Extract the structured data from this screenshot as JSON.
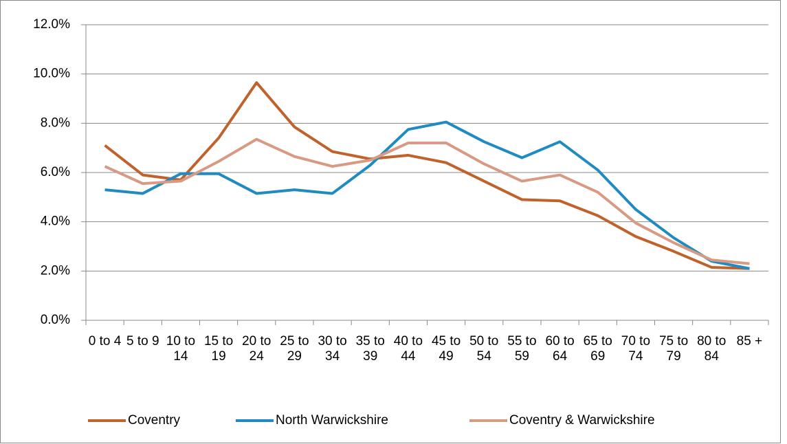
{
  "chart_data": {
    "type": "line",
    "categories": [
      "0 to 4",
      "5 to 9",
      "10 to 14",
      "15 to 19",
      "20 to 24",
      "25 to 29",
      "30 to 34",
      "35 to 39",
      "40 to 44",
      "45 to 49",
      "50 to 54",
      "55 to 59",
      "60 to 64",
      "65 to 69",
      "70 to 74",
      "75 to 79",
      "80 to 84",
      "85 +"
    ],
    "series": [
      {
        "name": "Coventry",
        "color": "#c0622b",
        "values": [
          7.1,
          5.9,
          5.7,
          7.4,
          9.65,
          7.85,
          6.85,
          6.55,
          6.7,
          6.4,
          5.65,
          4.9,
          4.85,
          4.25,
          3.4,
          2.8,
          2.15,
          2.1
        ]
      },
      {
        "name": "North Warwickshire",
        "color": "#1f8bc0",
        "values": [
          5.3,
          5.15,
          5.95,
          5.95,
          5.15,
          5.3,
          5.15,
          6.3,
          7.75,
          8.05,
          7.25,
          6.6,
          7.25,
          6.1,
          4.5,
          3.35,
          2.4,
          2.1
        ]
      },
      {
        "name": "Coventry & Warwickshire",
        "color": "#d99a84",
        "values": [
          6.25,
          5.55,
          5.65,
          6.45,
          7.35,
          6.65,
          6.25,
          6.5,
          7.2,
          7.2,
          6.35,
          5.65,
          5.9,
          5.2,
          3.95,
          3.15,
          2.45,
          2.3
        ]
      }
    ],
    "ylim": [
      0,
      12
    ],
    "yticks": [
      {
        "value": 0,
        "label": "0.0%"
      },
      {
        "value": 2,
        "label": "2.0%"
      },
      {
        "value": 4,
        "label": "4.0%"
      },
      {
        "value": 6,
        "label": "6.0%"
      },
      {
        "value": 8,
        "label": "8.0%"
      },
      {
        "value": 10,
        "label": "10.0%"
      },
      {
        "value": 12,
        "label": "12.0%"
      }
    ],
    "grid": true,
    "legend": "bottom"
  }
}
